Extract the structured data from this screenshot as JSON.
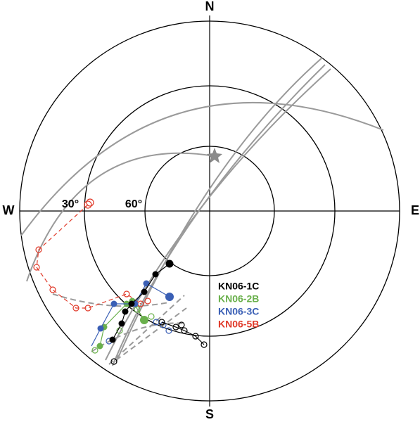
{
  "compass": {
    "north": "N",
    "south": "S",
    "east": "E",
    "west": "W"
  },
  "ring_labels": [
    "30°",
    "60°"
  ],
  "legend": [
    {
      "label": "KN06-1C",
      "color": "#000000"
    },
    {
      "label": "KN06-2B",
      "color": "#6ab04c"
    },
    {
      "label": "KN06-3C",
      "color": "#3a5fb5"
    },
    {
      "label": "KN06-5B",
      "color": "#e03a2a"
    }
  ]
}
